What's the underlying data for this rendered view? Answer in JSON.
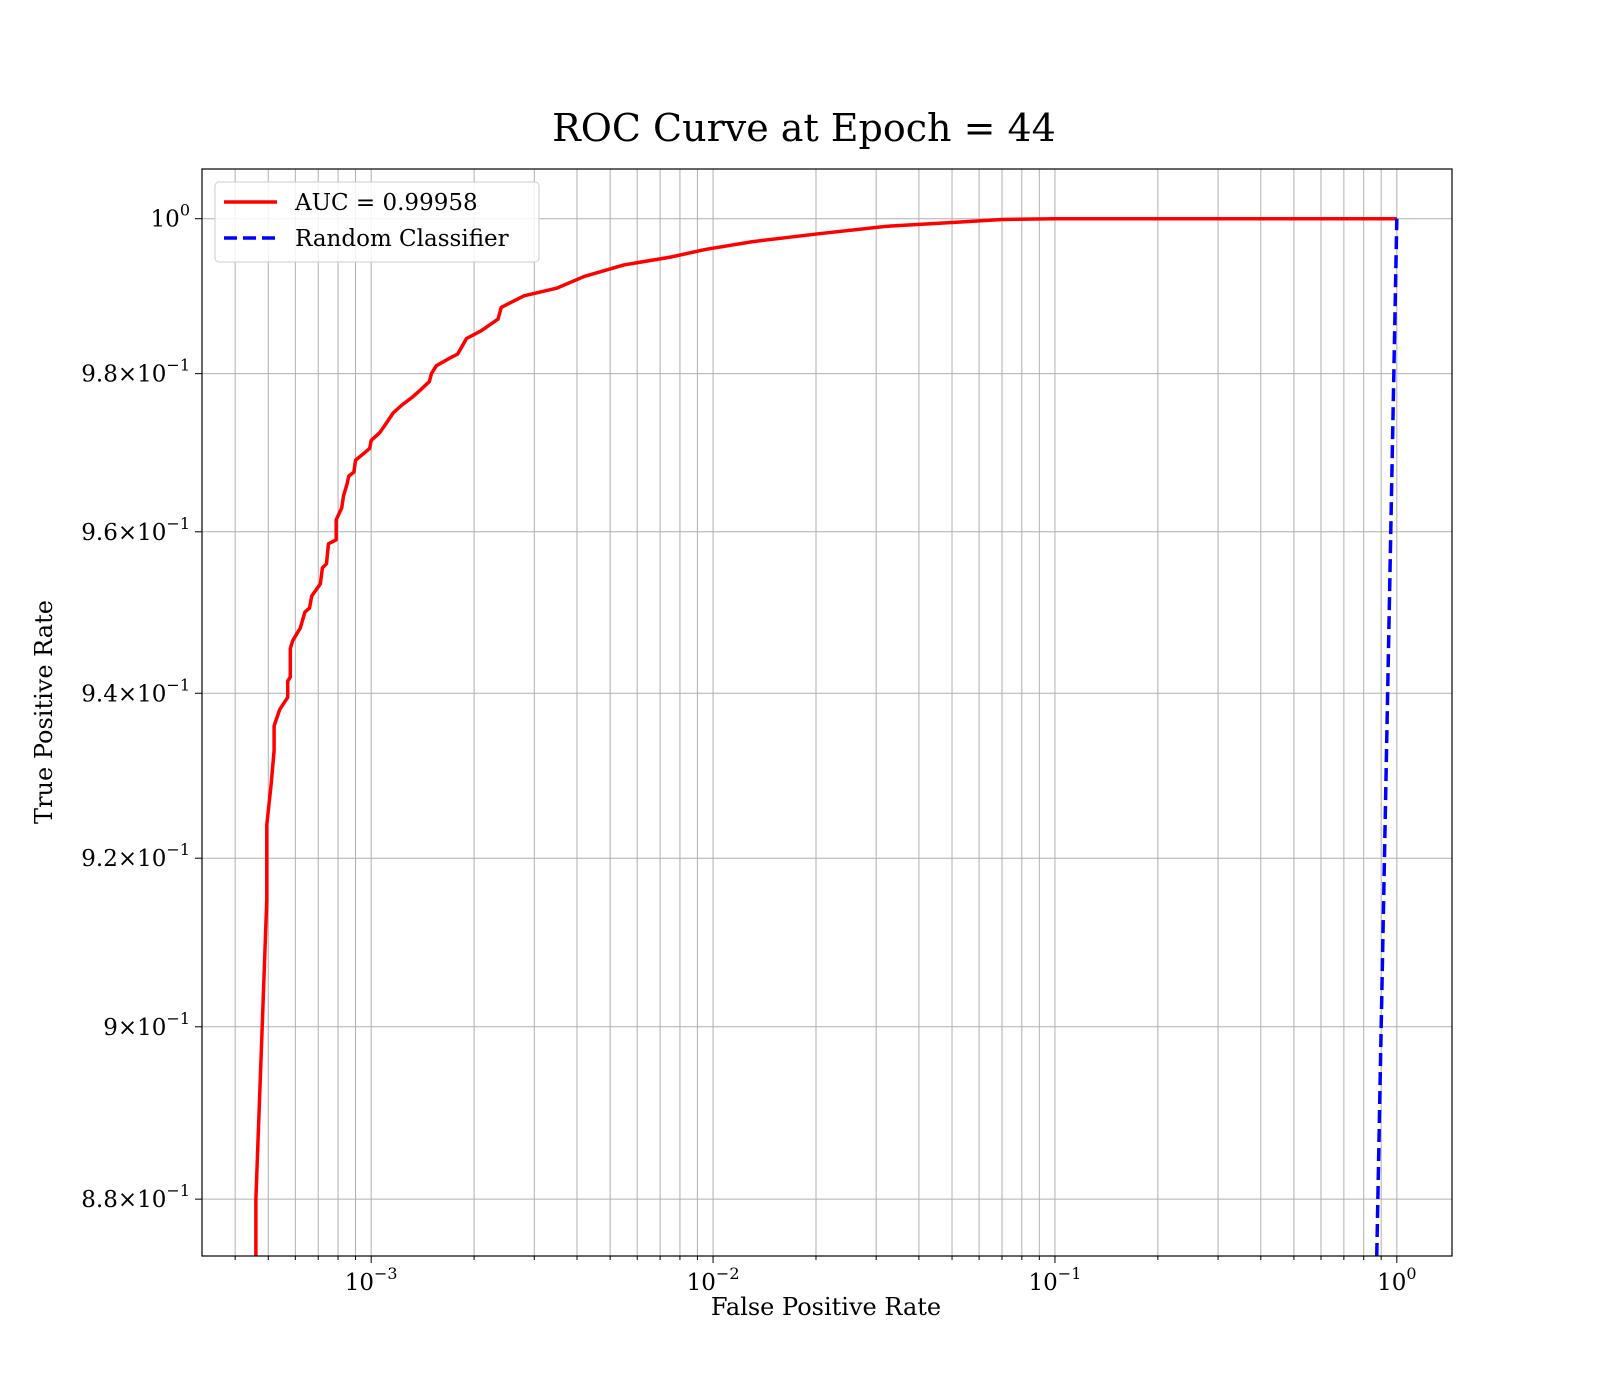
{
  "chart_data": {
    "type": "line",
    "title": "ROC Curve at Epoch = 44",
    "xlabel": "False Positive Rate",
    "ylabel": "True Positive Rate",
    "xscale": "log",
    "yscale": "log",
    "xlim": [
      0.00032,
      1.45
    ],
    "ylim": [
      0.8735,
      1.0065
    ],
    "grid": "both major and minor",
    "legend_position": "top-left",
    "x_ticks": [
      {
        "value": 0.001,
        "base": "10",
        "exp": "−3"
      },
      {
        "value": 0.01,
        "base": "10",
        "exp": "−2"
      },
      {
        "value": 0.1,
        "base": "10",
        "exp": "−1"
      },
      {
        "value": 1,
        "base": "10",
        "exp": "0"
      }
    ],
    "y_ticks": [
      {
        "value": 1.0,
        "base": "10",
        "exp": "0"
      },
      {
        "value": 0.98,
        "base": "9.8×10",
        "exp": "−1"
      },
      {
        "value": 0.96,
        "base": "9.6×10",
        "exp": "−1"
      },
      {
        "value": 0.94,
        "base": "9.4×10",
        "exp": "−1"
      },
      {
        "value": 0.92,
        "base": "9.2×10",
        "exp": "−1"
      },
      {
        "value": 0.9,
        "base": "9×10",
        "exp": "−1"
      },
      {
        "value": 0.88,
        "base": "8.8×10",
        "exp": "−1"
      }
    ],
    "series": [
      {
        "name": "AUC = 0.99958",
        "color": "#ff0000",
        "style": "solid",
        "points": [
          [
            0.00046,
            0.8735
          ],
          [
            0.00046,
            0.88
          ],
          [
            0.00048,
            0.9
          ],
          [
            0.000495,
            0.915
          ],
          [
            0.000495,
            0.924
          ],
          [
            0.00051,
            0.929
          ],
          [
            0.00052,
            0.933
          ],
          [
            0.00052,
            0.936
          ],
          [
            0.00054,
            0.938
          ],
          [
            0.00057,
            0.9395
          ],
          [
            0.00057,
            0.9415
          ],
          [
            0.00058,
            0.942
          ],
          [
            0.00058,
            0.9455
          ],
          [
            0.00059,
            0.9465
          ],
          [
            0.00062,
            0.948
          ],
          [
            0.00064,
            0.95
          ],
          [
            0.00066,
            0.9505
          ],
          [
            0.00067,
            0.952
          ],
          [
            0.00071,
            0.9535
          ],
          [
            0.00072,
            0.9555
          ],
          [
            0.00074,
            0.956
          ],
          [
            0.00075,
            0.9585
          ],
          [
            0.00079,
            0.959
          ],
          [
            0.00079,
            0.9615
          ],
          [
            0.00082,
            0.963
          ],
          [
            0.00083,
            0.9645
          ],
          [
            0.00085,
            0.966
          ],
          [
            0.00086,
            0.967
          ],
          [
            0.00089,
            0.9675
          ],
          [
            0.0009,
            0.969
          ],
          [
            0.00096,
            0.97
          ],
          [
            0.00099,
            0.9705
          ],
          [
            0.001,
            0.9715
          ],
          [
            0.00106,
            0.9725
          ],
          [
            0.0011,
            0.9735
          ],
          [
            0.00116,
            0.975
          ],
          [
            0.00123,
            0.976
          ],
          [
            0.00132,
            0.977
          ],
          [
            0.0014,
            0.978
          ],
          [
            0.00148,
            0.979
          ],
          [
            0.0015,
            0.98
          ],
          [
            0.00155,
            0.981
          ],
          [
            0.0017,
            0.982
          ],
          [
            0.00179,
            0.9825
          ],
          [
            0.0019,
            0.9845
          ],
          [
            0.0021,
            0.9855
          ],
          [
            0.00235,
            0.987
          ],
          [
            0.0024,
            0.9885
          ],
          [
            0.0028,
            0.99
          ],
          [
            0.0035,
            0.991
          ],
          [
            0.0042,
            0.9925
          ],
          [
            0.0055,
            0.994
          ],
          [
            0.0075,
            0.995
          ],
          [
            0.0095,
            0.996
          ],
          [
            0.013,
            0.997
          ],
          [
            0.02,
            0.998
          ],
          [
            0.032,
            0.999
          ],
          [
            0.05,
            0.9995
          ],
          [
            0.07,
            0.9999
          ],
          [
            0.1,
            1.0
          ],
          [
            0.3,
            1.0
          ],
          [
            1.0,
            1.0
          ]
        ]
      },
      {
        "name": "Random Classifier",
        "color": "#0000ff",
        "style": "dashed",
        "points": [
          [
            0.8735,
            0.8735
          ],
          [
            1.0,
            1.0
          ]
        ]
      }
    ]
  }
}
